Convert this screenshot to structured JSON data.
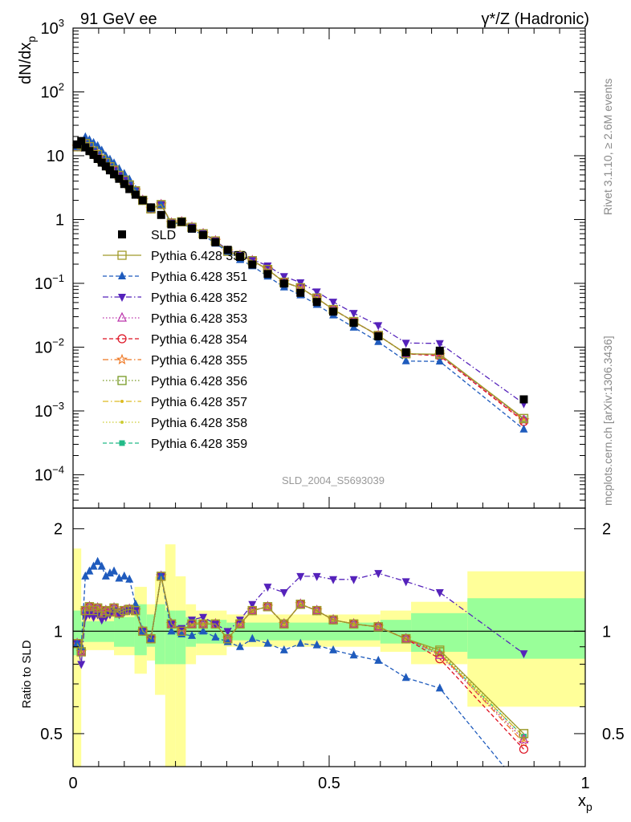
{
  "header": {
    "left": "91 GeV ee",
    "right_sym": "γ*/Z",
    "right_text": "(Hadronic)"
  },
  "side": {
    "rivet": "Rivet 3.1.10, ≥ 2.6M events",
    "mcplots": "mcplots.cern.ch [arXiv:1306.3436]"
  },
  "watermark": "SLD_2004_S5693039",
  "axes": {
    "top_ylabel_main": "dN/dx",
    "top_ylabel_sub": "p",
    "bottom_ylabel": "Ratio to SLD",
    "xlabel_main": "x",
    "xlabel_sub": "p",
    "x_ticks": [
      "0",
      "0.5",
      "1"
    ],
    "top_y_ticks": [
      {
        "base": "10",
        "exp": "3"
      },
      {
        "base": "10",
        "exp": "2"
      },
      {
        "base": "10",
        "exp": ""
      },
      {
        "base": "1",
        "exp": ""
      },
      {
        "base": "10",
        "exp": "−1"
      },
      {
        "base": "10",
        "exp": "−2"
      },
      {
        "base": "10",
        "exp": "−3"
      },
      {
        "base": "10",
        "exp": "−4"
      }
    ],
    "bottom_y_ticks": [
      "2",
      "1",
      "0.5"
    ]
  },
  "legend": [
    {
      "label": "SLD",
      "color": "#000000",
      "marker": "square-filled",
      "line": "none"
    },
    {
      "label": "Pythia 6.428 350",
      "color": "#a09a2a",
      "marker": "square-open",
      "line": "solid"
    },
    {
      "label": "Pythia 6.428 351",
      "color": "#1f5bbd",
      "marker": "triangle-up",
      "line": "dashed"
    },
    {
      "label": "Pythia 6.428 352",
      "color": "#5522bb",
      "marker": "triangle-down",
      "line": "dashdot"
    },
    {
      "label": "Pythia 6.428 353",
      "color": "#bb33aa",
      "marker": "triangle-open",
      "line": "dotted"
    },
    {
      "label": "Pythia 6.428 354",
      "color": "#dd1122",
      "marker": "circle-open",
      "line": "dashed"
    },
    {
      "label": "Pythia 6.428 355",
      "color": "#ee7722",
      "marker": "star-open",
      "line": "dashdot"
    },
    {
      "label": "Pythia 6.428 356",
      "color": "#779922",
      "marker": "square-open",
      "line": "dotted"
    },
    {
      "label": "Pythia 6.428 357",
      "color": "#ddbb22",
      "marker": "dot",
      "line": "dashdot"
    },
    {
      "label": "Pythia 6.428 358",
      "color": "#cccc33",
      "marker": "dot",
      "line": "dotted"
    },
    {
      "label": "Pythia 6.428 359",
      "color": "#22bb88",
      "marker": "square-filled-small",
      "line": "dashed"
    }
  ],
  "chart_data": {
    "type": "scatter",
    "x_range": [
      0,
      1
    ],
    "top_panel": {
      "y_scale": "log",
      "y_range": [
        3e-05,
        1000
      ],
      "x": [
        0.008,
        0.016,
        0.024,
        0.032,
        0.04,
        0.048,
        0.056,
        0.064,
        0.072,
        0.08,
        0.09,
        0.1,
        0.11,
        0.122,
        0.136,
        0.152,
        0.172,
        0.192,
        0.212,
        0.232,
        0.254,
        0.278,
        0.302,
        0.326,
        0.35,
        0.38,
        0.412,
        0.444,
        0.476,
        0.508,
        0.548,
        0.596,
        0.65,
        0.716,
        0.88
      ],
      "series": [
        {
          "name": "SLD",
          "y": [
            15.0,
            17.0,
            13.5,
            11.8,
            10.3,
            8.9,
            7.8,
            6.8,
            5.9,
            5.1,
            4.35,
            3.6,
            3.0,
            2.45,
            2.0,
            1.55,
            1.18,
            0.84,
            0.92,
            0.72,
            0.57,
            0.44,
            0.335,
            0.26,
            0.197,
            0.14,
            0.099,
            0.071,
            0.051,
            0.036,
            0.024,
            0.0148,
            0.0083,
            0.0088,
            0.00152
          ]
        },
        {
          "name": "Pythia 6.428 350",
          "ratio": [
            0.92,
            0.87,
            1.15,
            1.18,
            1.15,
            1.17,
            1.13,
            1.15,
            1.14,
            1.17,
            1.13,
            1.15,
            1.16,
            1.15,
            1.0,
            0.95,
            1.45,
            1.05,
            1.0,
            1.05,
            1.05,
            1.05,
            0.95,
            1.05,
            1.15,
            1.18,
            1.05,
            1.2,
            1.15,
            1.08,
            1.05,
            1.03,
            0.95,
            0.88,
            0.5
          ]
        },
        {
          "name": "Pythia 6.428 351",
          "ratio": [
            0.92,
            0.9,
            1.45,
            1.5,
            1.55,
            1.6,
            1.55,
            1.45,
            1.48,
            1.5,
            1.43,
            1.45,
            1.42,
            1.2,
            1.0,
            0.95,
            1.45,
            1.0,
            0.98,
            0.97,
            1.0,
            0.96,
            0.93,
            0.9,
            0.95,
            0.92,
            0.88,
            0.92,
            0.91,
            0.88,
            0.85,
            0.82,
            0.73,
            0.68,
            0.34
          ]
        },
        {
          "name": "Pythia 6.428 352",
          "ratio": [
            0.92,
            0.8,
            1.1,
            1.12,
            1.1,
            1.12,
            1.08,
            1.1,
            1.12,
            1.15,
            1.12,
            1.14,
            1.15,
            1.15,
            1.0,
            0.95,
            1.45,
            1.05,
            1.02,
            1.08,
            1.1,
            1.05,
            1.0,
            1.08,
            1.2,
            1.35,
            1.3,
            1.45,
            1.45,
            1.42,
            1.42,
            1.48,
            1.4,
            1.3,
            0.86
          ]
        },
        {
          "name": "Pythia 6.428 353",
          "ratio": [
            0.92,
            0.87,
            1.15,
            1.18,
            1.15,
            1.17,
            1.13,
            1.15,
            1.14,
            1.17,
            1.13,
            1.15,
            1.16,
            1.15,
            1.0,
            0.95,
            1.45,
            1.05,
            1.0,
            1.05,
            1.05,
            1.05,
            0.95,
            1.05,
            1.15,
            1.18,
            1.05,
            1.2,
            1.15,
            1.08,
            1.05,
            1.03,
            0.95,
            0.85,
            0.48
          ]
        },
        {
          "name": "Pythia 6.428 354",
          "ratio": [
            0.92,
            0.87,
            1.15,
            1.18,
            1.15,
            1.17,
            1.13,
            1.15,
            1.14,
            1.17,
            1.13,
            1.15,
            1.16,
            1.15,
            1.0,
            0.95,
            1.45,
            1.05,
            1.0,
            1.05,
            1.05,
            1.05,
            0.95,
            1.05,
            1.15,
            1.18,
            1.05,
            1.2,
            1.15,
            1.08,
            1.05,
            1.03,
            0.95,
            0.83,
            0.45
          ]
        },
        {
          "name": "Pythia 6.428 355",
          "ratio": [
            0.92,
            0.87,
            1.15,
            1.18,
            1.15,
            1.17,
            1.13,
            1.15,
            1.14,
            1.17,
            1.13,
            1.15,
            1.16,
            1.15,
            1.0,
            0.95,
            1.45,
            1.05,
            1.0,
            1.05,
            1.05,
            1.05,
            0.95,
            1.05,
            1.15,
            1.18,
            1.05,
            1.2,
            1.15,
            1.08,
            1.05,
            1.03,
            0.95,
            0.86,
            0.47
          ]
        },
        {
          "name": "Pythia 6.428 356",
          "ratio": [
            0.92,
            0.87,
            1.15,
            1.18,
            1.15,
            1.17,
            1.13,
            1.15,
            1.14,
            1.17,
            1.13,
            1.15,
            1.16,
            1.15,
            1.0,
            0.95,
            1.45,
            1.05,
            1.0,
            1.05,
            1.05,
            1.05,
            0.95,
            1.05,
            1.15,
            1.18,
            1.05,
            1.2,
            1.15,
            1.08,
            1.05,
            1.03,
            0.95,
            0.87,
            0.5
          ]
        },
        {
          "name": "Pythia 6.428 357",
          "ratio": [
            0.92,
            0.87,
            1.15,
            1.18,
            1.15,
            1.17,
            1.13,
            1.15,
            1.14,
            1.17,
            1.13,
            1.15,
            1.16,
            1.15,
            1.0,
            0.95,
            1.45,
            1.05,
            1.0,
            1.05,
            1.05,
            1.05,
            0.95,
            1.05,
            1.15,
            1.18,
            1.05,
            1.2,
            1.15,
            1.08,
            1.05,
            1.03,
            0.95,
            0.86,
            0.49
          ]
        },
        {
          "name": "Pythia 6.428 358",
          "ratio": [
            0.92,
            0.87,
            1.15,
            1.18,
            1.15,
            1.17,
            1.13,
            1.15,
            1.14,
            1.17,
            1.13,
            1.15,
            1.16,
            1.15,
            1.0,
            0.95,
            1.45,
            1.05,
            1.0,
            1.05,
            1.05,
            1.05,
            0.95,
            1.05,
            1.15,
            1.18,
            1.05,
            1.2,
            1.15,
            1.08,
            1.05,
            1.03,
            0.95,
            0.86,
            0.48
          ]
        },
        {
          "name": "Pythia 6.428 359",
          "ratio": [
            0.92,
            0.87,
            1.15,
            1.18,
            1.15,
            1.17,
            1.13,
            1.15,
            1.14,
            1.17,
            1.13,
            1.15,
            1.16,
            1.15,
            1.0,
            0.95,
            1.45,
            1.05,
            1.0,
            1.05,
            1.05,
            1.05,
            0.95,
            1.05,
            1.15,
            1.18,
            1.05,
            1.2,
            1.15,
            1.08,
            1.05,
            1.03,
            0.95,
            0.86,
            0.49
          ]
        }
      ]
    },
    "bottom_panel": {
      "y_scale": "log",
      "y_range": [
        0.4,
        2.3
      ],
      "reference_line": 1,
      "bands": [
        {
          "x0": 0.0,
          "x1": 0.016,
          "green": [
            0.85,
            1.15
          ],
          "yellow": [
            0.3,
            1.75
          ]
        },
        {
          "x0": 0.016,
          "x1": 0.08,
          "green": [
            0.93,
            1.07
          ],
          "yellow": [
            0.88,
            1.12
          ]
        },
        {
          "x0": 0.08,
          "x1": 0.12,
          "green": [
            0.9,
            1.1
          ],
          "yellow": [
            0.85,
            1.15
          ]
        },
        {
          "x0": 0.12,
          "x1": 0.144,
          "green": [
            0.85,
            1.2
          ],
          "yellow": [
            0.75,
            1.35
          ]
        },
        {
          "x0": 0.144,
          "x1": 0.16,
          "green": [
            0.9,
            1.12
          ],
          "yellow": [
            0.82,
            1.2
          ]
        },
        {
          "x0": 0.16,
          "x1": 0.18,
          "green": [
            0.8,
            1.2
          ],
          "yellow": [
            0.65,
            1.45
          ]
        },
        {
          "x0": 0.18,
          "x1": 0.2,
          "green": [
            0.8,
            1.15
          ],
          "yellow": [
            0.3,
            1.8
          ]
        },
        {
          "x0": 0.2,
          "x1": 0.22,
          "green": [
            0.8,
            1.15
          ],
          "yellow": [
            0.3,
            1.45
          ]
        },
        {
          "x0": 0.22,
          "x1": 0.24,
          "green": [
            0.9,
            1.1
          ],
          "yellow": [
            0.8,
            1.2
          ]
        },
        {
          "x0": 0.24,
          "x1": 0.3,
          "green": [
            0.92,
            1.08
          ],
          "yellow": [
            0.85,
            1.15
          ]
        },
        {
          "x0": 0.3,
          "x1": 0.6,
          "green": [
            0.94,
            1.06
          ],
          "yellow": [
            0.9,
            1.12
          ]
        },
        {
          "x0": 0.6,
          "x1": 0.66,
          "green": [
            0.92,
            1.08
          ],
          "yellow": [
            0.87,
            1.15
          ]
        },
        {
          "x0": 0.66,
          "x1": 0.77,
          "green": [
            0.87,
            1.13
          ],
          "yellow": [
            0.8,
            1.22
          ]
        },
        {
          "x0": 0.77,
          "x1": 1.0,
          "green": [
            0.83,
            1.25
          ],
          "yellow": [
            0.6,
            1.5
          ]
        }
      ]
    }
  }
}
